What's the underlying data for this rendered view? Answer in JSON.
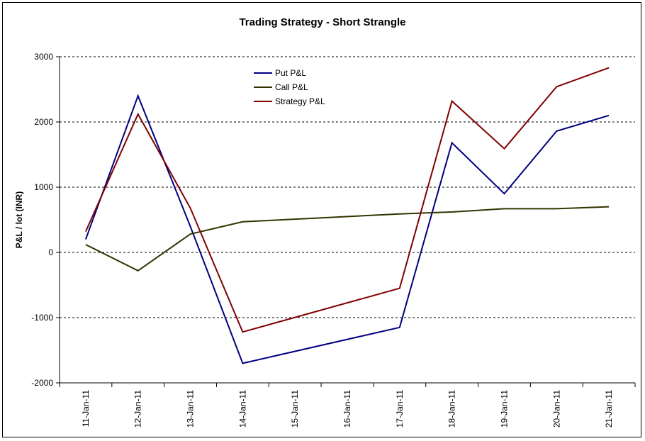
{
  "chart_data": {
    "type": "line",
    "title": "Trading Strategy - Short Strangle",
    "xlabel": "",
    "ylabel": "P&L / lot (INR)",
    "categories": [
      "11-Jan-11",
      "12-Jan-11",
      "13-Jan-11",
      "14-Jan-11",
      "15-Jan-11",
      "16-Jan-11",
      "17-Jan-11",
      "18-Jan-11",
      "19-Jan-11",
      "20-Jan-11",
      "21-Jan-11"
    ],
    "ylim": [
      -2000,
      3000
    ],
    "yticks": [
      "3000",
      "2000",
      "1000",
      "0",
      "-1000",
      "-2000"
    ],
    "grid": "horizontal-dashed",
    "legend_position": "top-center",
    "series": [
      {
        "name": "Put P&L",
        "color": "#000080",
        "points": [
          [
            0,
            200
          ],
          [
            1,
            2400
          ],
          [
            2,
            400
          ],
          [
            3,
            -1700
          ],
          [
            6,
            -1150
          ],
          [
            7,
            1680
          ],
          [
            8,
            900
          ],
          [
            9,
            1860
          ],
          [
            10,
            2100
          ]
        ]
      },
      {
        "name": "Call P&L",
        "color": "#333300",
        "points": [
          [
            0,
            120
          ],
          [
            1,
            -280
          ],
          [
            2,
            280
          ],
          [
            3,
            470
          ],
          [
            6,
            590
          ],
          [
            7,
            620
          ],
          [
            8,
            670
          ],
          [
            9,
            670
          ],
          [
            10,
            700
          ]
        ]
      },
      {
        "name": "Strategy P&L",
        "color": "#800000",
        "points": [
          [
            0,
            320
          ],
          [
            1,
            2120
          ],
          [
            2,
            680
          ],
          [
            3,
            -1220
          ],
          [
            6,
            -550
          ],
          [
            7,
            2320
          ],
          [
            8,
            1590
          ],
          [
            9,
            2540
          ],
          [
            10,
            2830
          ]
        ]
      }
    ]
  }
}
